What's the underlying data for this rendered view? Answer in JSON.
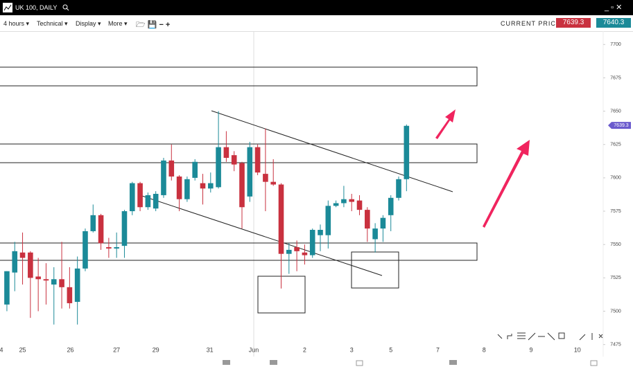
{
  "header": {
    "title": "UK 100, DAILY"
  },
  "toolbar": {
    "interval": "4 hours",
    "technical": "Technical",
    "display": "Display",
    "more": "More",
    "current_price": "CURRENT PRICE:",
    "bid": "7639.3",
    "ask": "7640.3"
  },
  "chart_data": {
    "type": "candlestick",
    "x": [
      0,
      1,
      2,
      3,
      4,
      5,
      6,
      7,
      8,
      9,
      10,
      11,
      12,
      13,
      14,
      15,
      16,
      17,
      18,
      19,
      20,
      21,
      22,
      23,
      24,
      25,
      26,
      27,
      28,
      29,
      30,
      31,
      32,
      33,
      34,
      35,
      36,
      37,
      38,
      39,
      40,
      41,
      42,
      43,
      44,
      45,
      46,
      47,
      48,
      49,
      50,
      51
    ],
    "open": [
      7505,
      7529,
      7544,
      7544,
      7526,
      7524,
      7520,
      7524,
      7518,
      7507,
      7532,
      7560,
      7572,
      7548,
      7547,
      7549,
      7575,
      7596,
      7578,
      7577,
      7587,
      7613,
      7601,
      7584,
      7600,
      7596,
      7592,
      7593,
      7623,
      7617,
      7611,
      7586,
      7623,
      7603,
      7597,
      7595,
      7543,
      7548,
      7544,
      7542,
      7557,
      7557,
      7579,
      7581,
      7584,
      7583,
      7576,
      7554,
      7562,
      7572,
      7585,
      7599
    ],
    "high": [
      7530,
      7552,
      7559,
      7545,
      7540,
      7536,
      7533,
      7552,
      7533,
      7541,
      7562,
      7580,
      7573,
      7555,
      7559,
      7576,
      7597,
      7597,
      7589,
      7590,
      7615,
      7625,
      7602,
      7601,
      7614,
      7603,
      7604,
      7650,
      7635,
      7620,
      7612,
      7627,
      7625,
      7637,
      7614,
      7596,
      7551,
      7553,
      7550,
      7562,
      7565,
      7583,
      7583,
      7594,
      7588,
      7587,
      7578,
      7566,
      7572,
      7587,
      7601,
      7640
    ],
    "low": [
      7500,
      7515,
      7520,
      7495,
      7500,
      7505,
      7490,
      7502,
      7502,
      7490,
      7530,
      7559,
      7546,
      7540,
      7540,
      7540,
      7572,
      7575,
      7576,
      7575,
      7585,
      7598,
      7575,
      7582,
      7598,
      7580,
      7589,
      7592,
      7612,
      7605,
      7562,
      7582,
      7602,
      7575,
      7594,
      7517,
      7528,
      7530,
      7535,
      7540,
      7545,
      7547,
      7578,
      7578,
      7575,
      7572,
      7552,
      7544,
      7552,
      7560,
      7583,
      7590
    ],
    "close": [
      7530,
      7545,
      7540,
      7525,
      7524,
      7523,
      7524,
      7518,
      7506,
      7532,
      7560,
      7572,
      7551,
      7547,
      7548,
      7575,
      7596,
      7578,
      7587,
      7588,
      7613,
      7601,
      7584,
      7599,
      7612,
      7592,
      7596,
      7623,
      7615,
      7610,
      7578,
      7623,
      7604,
      7597,
      7595,
      7543,
      7546,
      7545,
      7542,
      7561,
      7561,
      7579,
      7581,
      7584,
      7582,
      7576,
      7562,
      7562,
      7570,
      7585,
      7599,
      7639
    ],
    "up_color": "#1b8a98",
    "down_color": "#c9313f",
    "last_price": 7639.3,
    "last_price_label": "7639.3",
    "ylim": [
      7466,
      7710
    ],
    "yticks": [
      7475,
      7500,
      7525,
      7550,
      7575,
      7600,
      7625,
      7650,
      7675,
      7700
    ],
    "xlim": [
      -0.88,
      76.1
    ],
    "xticks": [
      {
        "value": -0.7,
        "label": "4"
      },
      {
        "value": 2.0,
        "label": "25"
      },
      {
        "value": 8.1,
        "label": "26"
      },
      {
        "value": 14.0,
        "label": "27"
      },
      {
        "value": 19.0,
        "label": "29"
      },
      {
        "value": 25.9,
        "label": "31"
      },
      {
        "value": 31.5,
        "label": "Jun"
      },
      {
        "value": 38.0,
        "label": "2"
      },
      {
        "value": 44.0,
        "label": "3"
      },
      {
        "value": 49.0,
        "label": "5"
      },
      {
        "value": 55.0,
        "label": "7"
      },
      {
        "value": 60.9,
        "label": "8"
      },
      {
        "value": 66.9,
        "label": "9"
      },
      {
        "value": 72.8,
        "label": "10"
      }
    ]
  }
}
